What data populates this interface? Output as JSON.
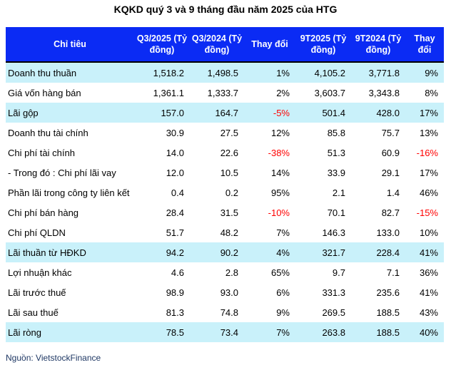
{
  "title": "KQKD quý 3 và 9 tháng đầu năm 2025 của HTG",
  "source": "Nguồn: VietstockFinance",
  "colors": {
    "header_bg": "#0B2BF4",
    "header_text": "#FFFFFF",
    "stripe_bg": "#C9F1FA",
    "negative": "#FF0000",
    "source_text": "#1F3864"
  },
  "table": {
    "headers": [
      "Chỉ tiêu",
      "Q3/2025 (Tỷ đồng)",
      "Q3/2024 (Tỷ đồng)",
      "Thay đổi",
      "9T2025 (Tỷ đồng)",
      "9T2024 (Tỷ đồng)",
      "Thay đổi"
    ],
    "rows": [
      {
        "label": "Doanh thu thuần",
        "values": [
          "1,518.2",
          "1,498.5",
          "1%",
          "4,105.2",
          "3,771.8",
          "9%"
        ],
        "highlight": true
      },
      {
        "label": "Giá vốn hàng bán",
        "values": [
          "1,361.1",
          "1,333.7",
          "2%",
          "3,603.7",
          "3,343.8",
          "8%"
        ],
        "highlight": false
      },
      {
        "label": "Lãi gộp",
        "values": [
          "157.0",
          "164.7",
          "-5%",
          "501.4",
          "428.0",
          "17%"
        ],
        "highlight": true
      },
      {
        "label": "Doanh thu tài chính",
        "values": [
          "30.9",
          "27.5",
          "12%",
          "85.8",
          "75.7",
          "13%"
        ],
        "highlight": false
      },
      {
        "label": "Chi phí tài chính",
        "values": [
          "14.0",
          "22.6",
          "-38%",
          "51.3",
          "60.9",
          "-16%"
        ],
        "highlight": false
      },
      {
        "label": "- Trong đó : Chi phí lãi vay",
        "values": [
          "12.0",
          "10.5",
          "14%",
          "33.9",
          "29.1",
          "17%"
        ],
        "highlight": false
      },
      {
        "label": "Phần lãi trong công ty liên kết",
        "values": [
          "0.4",
          "0.2",
          "95%",
          "2.1",
          "1.4",
          "46%"
        ],
        "highlight": false
      },
      {
        "label": "Chi phí bán hàng",
        "values": [
          "28.4",
          "31.5",
          "-10%",
          "70.1",
          "82.7",
          "-15%"
        ],
        "highlight": false
      },
      {
        "label": "Chi phí QLDN",
        "values": [
          "51.7",
          "48.2",
          "7%",
          "146.3",
          "133.0",
          "10%"
        ],
        "highlight": false
      },
      {
        "label": "Lãi thuần từ HĐKD",
        "values": [
          "94.2",
          "90.2",
          "4%",
          "321.7",
          "228.4",
          "41%"
        ],
        "highlight": true
      },
      {
        "label": "Lợi nhuận khác",
        "values": [
          "4.6",
          "2.8",
          "65%",
          "9.7",
          "7.1",
          "36%"
        ],
        "highlight": false
      },
      {
        "label": "Lãi trước thuế",
        "values": [
          "98.9",
          "93.0",
          "6%",
          "331.3",
          "235.6",
          "41%"
        ],
        "highlight": false
      },
      {
        "label": "Lãi sau thuế",
        "values": [
          "81.3",
          "74.8",
          "9%",
          "269.5",
          "188.5",
          "43%"
        ],
        "highlight": false
      },
      {
        "label": "Lãi ròng",
        "values": [
          "78.5",
          "73.4",
          "7%",
          "263.8",
          "188.5",
          "40%"
        ],
        "highlight": true
      }
    ]
  },
  "chart_data": {
    "type": "table",
    "title": "KQKD quý 3 và 9 tháng đầu năm 2025 của HTG",
    "columns": [
      "Chỉ tiêu",
      "Q3/2025 (Tỷ đồng)",
      "Q3/2024 (Tỷ đồng)",
      "Thay đổi",
      "9T2025 (Tỷ đồng)",
      "9T2024 (Tỷ đồng)",
      "Thay đổi"
    ],
    "rows": [
      [
        "Doanh thu thuần",
        1518.2,
        1498.5,
        "1%",
        4105.2,
        3771.8,
        "9%"
      ],
      [
        "Giá vốn hàng bán",
        1361.1,
        1333.7,
        "2%",
        3603.7,
        3343.8,
        "8%"
      ],
      [
        "Lãi gộp",
        157.0,
        164.7,
        "-5%",
        501.4,
        428.0,
        "17%"
      ],
      [
        "Doanh thu tài chính",
        30.9,
        27.5,
        "12%",
        85.8,
        75.7,
        "13%"
      ],
      [
        "Chi phí tài chính",
        14.0,
        22.6,
        "-38%",
        51.3,
        60.9,
        "-16%"
      ],
      [
        "- Trong đó : Chi phí lãi vay",
        12.0,
        10.5,
        "14%",
        33.9,
        29.1,
        "17%"
      ],
      [
        "Phần lãi trong công ty liên kết",
        0.4,
        0.2,
        "95%",
        2.1,
        1.4,
        "46%"
      ],
      [
        "Chi phí bán hàng",
        28.4,
        31.5,
        "-10%",
        70.1,
        82.7,
        "-15%"
      ],
      [
        "Chi phí QLDN",
        51.7,
        48.2,
        "7%",
        146.3,
        133.0,
        "10%"
      ],
      [
        "Lãi thuần từ HĐKD",
        94.2,
        90.2,
        "4%",
        321.7,
        228.4,
        "41%"
      ],
      [
        "Lợi nhuận khác",
        4.6,
        2.8,
        "65%",
        9.7,
        7.1,
        "36%"
      ],
      [
        "Lãi trước thuế",
        98.9,
        93.0,
        "6%",
        331.3,
        235.6,
        "41%"
      ],
      [
        "Lãi sau thuế",
        81.3,
        74.8,
        "9%",
        269.5,
        188.5,
        "43%"
      ],
      [
        "Lãi ròng",
        78.5,
        73.4,
        "7%",
        263.8,
        188.5,
        "40%"
      ]
    ],
    "legend_position": "none",
    "grid": false
  }
}
